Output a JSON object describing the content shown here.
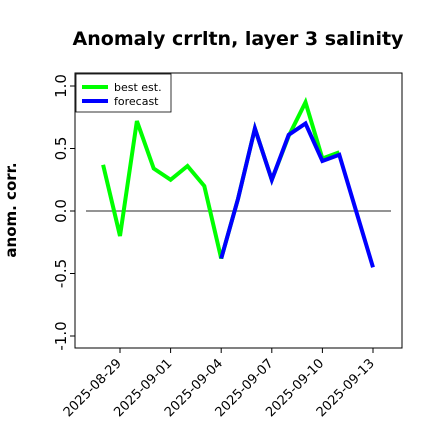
{
  "chart_data": {
    "type": "line",
    "title": "Anomaly crrltn, layer 3 salinity",
    "xlabel": "",
    "ylabel": "anom. corr.",
    "ylim": [
      -1.0,
      1.0
    ],
    "xlim_days": [
      -3,
      19
    ],
    "y_ticks": [
      "-1.0",
      "-0.5",
      "0.0",
      "0.5",
      "1.0"
    ],
    "x_ticks": [
      {
        "label": "2025-08-29",
        "day": 0,
        "color": "#000000"
      },
      {
        "label": "2025-09-01",
        "day": 3,
        "color": "#000000"
      },
      {
        "label": "2025-09-04",
        "day": 6,
        "color": "#228B22"
      },
      {
        "label": "2025-09-07",
        "day": 9,
        "color": "#000000"
      },
      {
        "label": "2025-09-10",
        "day": 12,
        "color": "#000000"
      },
      {
        "label": "2025-09-13",
        "day": 15,
        "color": "#000000"
      }
    ],
    "reference_line": 0.0,
    "legend_position": "top-left",
    "series": [
      {
        "name": "best est.",
        "color": "#00ff00",
        "points": [
          {
            "day": -1,
            "y": 0.37
          },
          {
            "day": 0,
            "y": -0.2
          },
          {
            "day": 1,
            "y": 0.72
          },
          {
            "day": 2,
            "y": 0.34
          },
          {
            "day": 3,
            "y": 0.25
          },
          {
            "day": 4,
            "y": 0.36
          },
          {
            "day": 5,
            "y": 0.2
          },
          {
            "day": 6,
            "y": -0.38
          },
          {
            "day": 7,
            "y": 0.1
          },
          {
            "day": 8,
            "y": 0.66
          },
          {
            "day": 9,
            "y": 0.25
          },
          {
            "day": 10,
            "y": 0.6
          },
          {
            "day": 11,
            "y": 0.87
          },
          {
            "day": 12,
            "y": 0.42
          },
          {
            "day": 13,
            "y": 0.47
          }
        ]
      },
      {
        "name": "forecast",
        "color": "#0000ff",
        "points": [
          {
            "day": 6,
            "y": -0.38
          },
          {
            "day": 7,
            "y": 0.1
          },
          {
            "day": 8,
            "y": 0.66
          },
          {
            "day": 9,
            "y": 0.25
          },
          {
            "day": 10,
            "y": 0.61
          },
          {
            "day": 11,
            "y": 0.7
          },
          {
            "day": 12,
            "y": 0.4
          },
          {
            "day": 13,
            "y": 0.45
          },
          {
            "day": 14,
            "y": 0.0
          },
          {
            "day": 15,
            "y": -0.45
          }
        ]
      }
    ]
  }
}
